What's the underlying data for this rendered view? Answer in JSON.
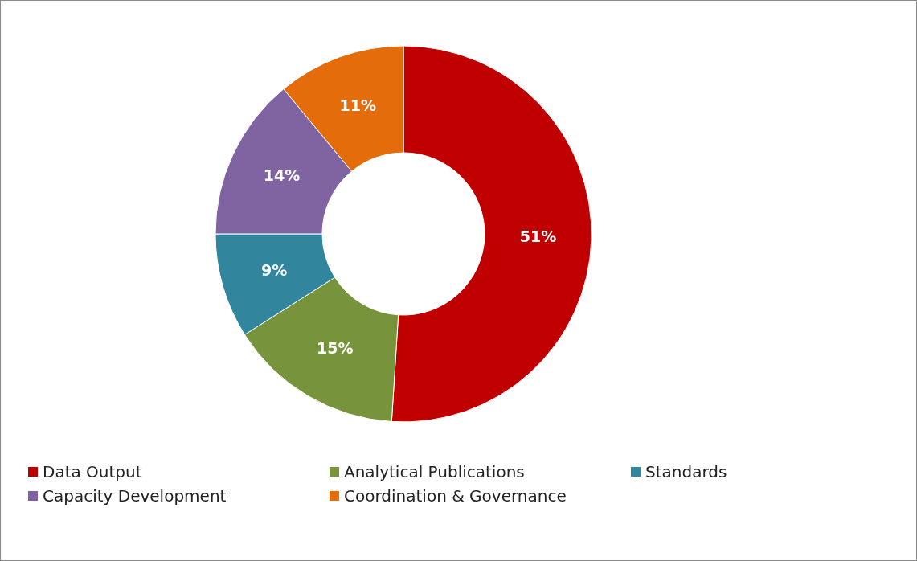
{
  "chart_data": {
    "type": "donut",
    "categories": [
      "Data Output",
      "Analytical Publications",
      "Standards",
      "Capacity Development",
      "Coordination & Governance"
    ],
    "values": [
      51,
      15,
      9,
      14,
      11
    ],
    "colors": [
      "#c00000",
      "#77933c",
      "#31859c",
      "#8064a2",
      "#e46c0a"
    ],
    "value_labels": [
      "51%",
      "15%",
      "9%",
      "14%",
      "11%"
    ],
    "legend": "bottom"
  }
}
